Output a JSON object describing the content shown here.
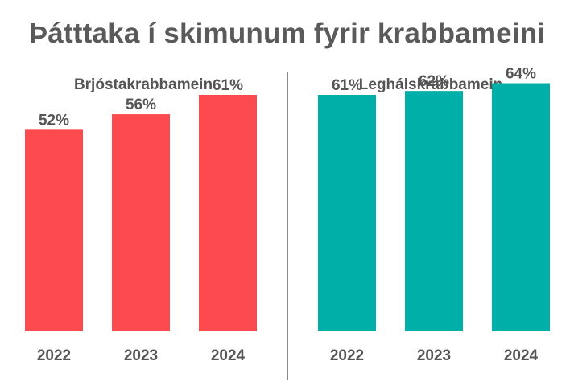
{
  "title": "Þátttaka í skimunum fyrir krabbameini",
  "chart_data": [
    {
      "type": "bar",
      "title": "Brjóstakrabbamein",
      "categories": [
        "2022",
        "2023",
        "2024"
      ],
      "values": [
        52,
        56,
        61
      ],
      "value_labels": [
        "52%",
        "56%",
        "61%"
      ],
      "color": "#fc4a4f",
      "ylim": [
        0,
        100
      ],
      "grid": false
    },
    {
      "type": "bar",
      "title": "Leghálskrabbamein",
      "categories": [
        "2022",
        "2023",
        "2024"
      ],
      "values": [
        61,
        62,
        64
      ],
      "value_labels": [
        "61%",
        "62%",
        "64%"
      ],
      "color": "#00b0a8",
      "ylim": [
        0,
        100
      ],
      "grid": false
    }
  ]
}
